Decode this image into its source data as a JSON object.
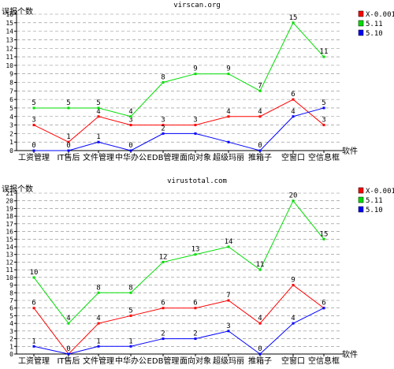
{
  "chart_data": [
    {
      "type": "line",
      "title": "virscan.org",
      "ylabel": "误报个数",
      "xlabel": "软件",
      "categories": [
        "工资管理",
        "IT售后",
        "文件管理",
        "中华办公",
        "EDB管理",
        "面向对象",
        "超级玛丽",
        "推箱子",
        "空窗口",
        "空信息框"
      ],
      "ylim": [
        0,
        16
      ],
      "yticks": [
        0,
        1,
        2,
        3,
        4,
        5,
        6,
        7,
        8,
        9,
        10,
        11,
        12,
        13,
        14,
        15,
        16
      ],
      "grid": true,
      "legend_position": "top-right",
      "series": [
        {
          "name": "X-0.001",
          "color": "#ff0000",
          "values": [
            3,
            1,
            4,
            3,
            3,
            3,
            4,
            4,
            6,
            3
          ]
        },
        {
          "name": "5.11",
          "color": "#00dd00",
          "values": [
            5,
            5,
            5,
            4,
            8,
            9,
            9,
            7,
            15,
            11
          ]
        },
        {
          "name": "5.10",
          "color": "#0000ff",
          "values": [
            0,
            0,
            1,
            0,
            2,
            2,
            1,
            0,
            4,
            5
          ]
        }
      ],
      "point_labels": [
        [
          "3",
          "1",
          "4",
          "3",
          "3",
          "3",
          "4",
          "4",
          "6",
          "3"
        ],
        [
          "5",
          "5",
          "5",
          "4",
          "8",
          "9",
          "9",
          "7",
          "15",
          "11"
        ],
        [
          "0",
          "0",
          "1",
          "0",
          "2",
          "",
          "",
          "0",
          "4",
          "5"
        ]
      ]
    },
    {
      "type": "line",
      "title": "virustotal.com",
      "ylabel": "误报个数",
      "xlabel": "软件",
      "categories": [
        "工资管理",
        "IT售后",
        "文件管理",
        "中华办公",
        "EDB管理",
        "面向对象",
        "超级玛丽",
        "推箱子",
        "空窗口",
        "空信息框"
      ],
      "ylim": [
        0,
        21
      ],
      "yticks": [
        0,
        1,
        2,
        3,
        4,
        5,
        6,
        7,
        8,
        9,
        10,
        11,
        12,
        13,
        14,
        15,
        16,
        17,
        18,
        19,
        20,
        21
      ],
      "grid": true,
      "legend_position": "top-right",
      "series": [
        {
          "name": "X-0.001",
          "color": "#ff0000",
          "values": [
            6,
            0,
            4,
            5,
            6,
            6,
            7,
            4,
            9,
            6
          ]
        },
        {
          "name": "5.11",
          "color": "#00dd00",
          "values": [
            10,
            4,
            8,
            8,
            12,
            13,
            14,
            11,
            20,
            15
          ]
        },
        {
          "name": "5.10",
          "color": "#0000ff",
          "values": [
            1,
            0,
            1,
            1,
            2,
            2,
            3,
            0,
            4,
            6
          ]
        }
      ],
      "point_labels": [
        [
          "6",
          "",
          "4",
          "5",
          "6",
          "6",
          "7",
          "4",
          "9",
          "6"
        ],
        [
          "10",
          "4",
          "8",
          "8",
          "12",
          "13",
          "14",
          "11",
          "20",
          "15"
        ],
        [
          "1",
          "0",
          "1",
          "1",
          "2",
          "2",
          "3",
          "0",
          "4",
          ""
        ]
      ]
    }
  ]
}
